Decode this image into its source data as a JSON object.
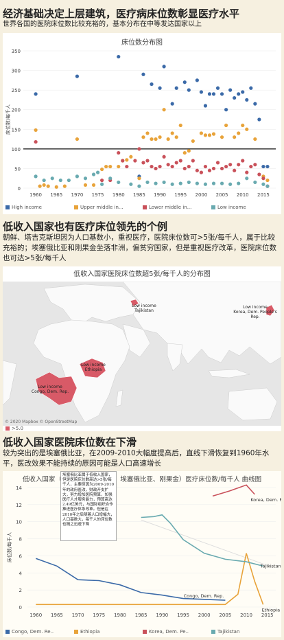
{
  "section1": {
    "title": "经济基础决定上层建筑，医疗病床位数彰显医疗水平",
    "subtitle": "世界各国的医院床位数比较充裕的，基本分布在中等发达国家以上",
    "chart_title": "床位数分布图"
  },
  "section2": {
    "title": "低收入国家也有医疗床位领先的个例",
    "text": "朝鲜、塔吉克斯坦因为人口基数小，重视医疗，医院床位数可>5张/每千人，属于比较充裕的；埃塞俄比亚和刚果金坐落非洲，偏贫穷国家，但是重视医疗改革，医院床位数也可达>5张/每千人",
    "chart_title": "低收入国家医院床位数超5张/每千人的分布图",
    "legend_label": ">5.0",
    "attribution": "© 2020 Mapbox © OpenStreetMap",
    "map_labels": {
      "tajikistan": "Low income\nTajikistan",
      "korea": "Low income\nKorea, Dem. People's Rep.",
      "ethiopia": "Low income\nEthiopia",
      "congo": "Low income\nCongo, Dem. Rep."
    }
  },
  "section3": {
    "title": "低收入国家医院床位数在下滑",
    "text": "较为突出的是埃塞俄比亚，在2009-2010大幅度提高后，直线下滑恢复到1960年水平，医改效果不能持续的原因可能是人口高速增长",
    "chart_title": "低收入国家（朝鲜、塔吉克斯坦、埃塞俄比亚、刚果金）医疗床位数/每千人 曲线图",
    "annotation": "埃塞俄比亚属于低收入国家，但是医院床位数高达>5张/每千人，主要原因为2009-2010年的政府医改，财政开支扩大，努力增加医院预算，加强医疗人才服务能力，预算高达2.49亿美元，与国际组织合作推进医疗体系改革。但是在2010年之后随着人口增幅大，人口基数大，每千人的床位数也随之迅速下降"
  },
  "chart_data": [
    {
      "type": "scatter",
      "title": "床位数分布图",
      "xlabel": "",
      "ylabel": "床位数/每千人",
      "xlim": [
        1957,
        2018
      ],
      "ylim": [
        0,
        350
      ],
      "x_ticks": [
        1960,
        1965,
        1970,
        1975,
        1980,
        1985,
        1990,
        1995,
        2000,
        2005,
        2010,
        2015
      ],
      "y_ticks": [
        0,
        50,
        100,
        150,
        200,
        250,
        300,
        350
      ],
      "reference_line": 100,
      "series": [
        {
          "name": "High income",
          "color": "#3b6aa8",
          "points": [
            [
              1960,
              240
            ],
            [
              1970,
              285
            ],
            [
              1980,
              335
            ],
            [
              1985,
              30
            ],
            [
              1986,
              290
            ],
            [
              1988,
              265
            ],
            [
              1990,
              255
            ],
            [
              1991,
              310
            ],
            [
              1993,
              215
            ],
            [
              1994,
              255
            ],
            [
              1996,
              270
            ],
            [
              1997,
              250
            ],
            [
              1999,
              275
            ],
            [
              2000,
              245
            ],
            [
              2001,
              210
            ],
            [
              2002,
              240
            ],
            [
              2003,
              240
            ],
            [
              2004,
              255
            ],
            [
              2005,
              240
            ],
            [
              2006,
              200
            ],
            [
              2007,
              250
            ],
            [
              2008,
              230
            ],
            [
              2009,
              240
            ],
            [
              2010,
              245
            ],
            [
              2011,
              225
            ],
            [
              2012,
              255
            ],
            [
              2013,
              215
            ],
            [
              2014,
              175
            ],
            [
              2015,
              55
            ],
            [
              2016,
              55
            ]
          ]
        },
        {
          "name": "Upper middle in...",
          "color": "#e8a33a",
          "points": [
            [
              1960,
              148
            ],
            [
              1961,
              5
            ],
            [
              1962,
              8
            ],
            [
              1963,
              5
            ],
            [
              1965,
              3
            ],
            [
              1967,
              5
            ],
            [
              1970,
              125
            ],
            [
              1972,
              8
            ],
            [
              1974,
              8
            ],
            [
              1976,
              48
            ],
            [
              1977,
              55
            ],
            [
              1978,
              55
            ],
            [
              1980,
              55
            ],
            [
              1981,
              70
            ],
            [
              1982,
              72
            ],
            [
              1983,
              80
            ],
            [
              1985,
              25
            ],
            [
              1986,
              130
            ],
            [
              1987,
              140
            ],
            [
              1988,
              125
            ],
            [
              1989,
              125
            ],
            [
              1990,
              130
            ],
            [
              1991,
              200
            ],
            [
              1992,
              125
            ],
            [
              1993,
              140
            ],
            [
              1994,
              130
            ],
            [
              1995,
              160
            ],
            [
              1996,
              90
            ],
            [
              1997,
              95
            ],
            [
              1998,
              120
            ],
            [
              2000,
              140
            ],
            [
              2001,
              135
            ],
            [
              2002,
              135
            ],
            [
              2003,
              138
            ],
            [
              2005,
              130
            ],
            [
              2006,
              160
            ],
            [
              2008,
              130
            ],
            [
              2009,
              140
            ],
            [
              2010,
              160
            ],
            [
              2011,
              150
            ],
            [
              2013,
              125
            ],
            [
              2015,
              30
            ],
            [
              2016,
              20
            ]
          ]
        },
        {
          "name": "Lower middle in...",
          "color": "#c9515a",
          "points": [
            [
              1960,
              118
            ],
            [
              1976,
              20
            ],
            [
              1978,
              20
            ],
            [
              1980,
              90
            ],
            [
              1981,
              70
            ],
            [
              1982,
              55
            ],
            [
              1984,
              70
            ],
            [
              1985,
              100
            ],
            [
              1986,
              65
            ],
            [
              1987,
              70
            ],
            [
              1988,
              55
            ],
            [
              1989,
              50
            ],
            [
              1990,
              55
            ],
            [
              1991,
              80
            ],
            [
              1992,
              60
            ],
            [
              1993,
              55
            ],
            [
              1994,
              65
            ],
            [
              1995,
              70
            ],
            [
              1996,
              50
            ],
            [
              1997,
              55
            ],
            [
              1998,
              70
            ],
            [
              1999,
              45
            ],
            [
              2000,
              40
            ],
            [
              2001,
              55
            ],
            [
              2002,
              45
            ],
            [
              2003,
              50
            ],
            [
              2004,
              65
            ],
            [
              2005,
              50
            ],
            [
              2006,
              55
            ],
            [
              2007,
              60
            ],
            [
              2008,
              45
            ],
            [
              2009,
              60
            ],
            [
              2010,
              70
            ],
            [
              2011,
              40
            ],
            [
              2012,
              55
            ],
            [
              2013,
              60
            ],
            [
              2014,
              35
            ],
            [
              2015,
              25
            ],
            [
              2016,
              5
            ]
          ]
        },
        {
          "name": "Low income",
          "color": "#69aab0",
          "points": [
            [
              1960,
              30
            ],
            [
              1962,
              20
            ],
            [
              1964,
              25
            ],
            [
              1966,
              20
            ],
            [
              1968,
              20
            ],
            [
              1970,
              30
            ],
            [
              1972,
              25
            ],
            [
              1974,
              35
            ],
            [
              1975,
              40
            ],
            [
              1976,
              10
            ],
            [
              1978,
              25
            ],
            [
              1980,
              15
            ],
            [
              1983,
              10
            ],
            [
              1985,
              5
            ],
            [
              1987,
              15
            ],
            [
              1989,
              12
            ],
            [
              1991,
              15
            ],
            [
              1993,
              10
            ],
            [
              1995,
              12
            ],
            [
              1997,
              15
            ],
            [
              1999,
              12
            ],
            [
              2001,
              10
            ],
            [
              2003,
              12
            ],
            [
              2005,
              12
            ],
            [
              2007,
              10
            ],
            [
              2009,
              12
            ],
            [
              2011,
              25
            ],
            [
              2013,
              15
            ],
            [
              2015,
              10
            ],
            [
              2016,
              5
            ]
          ]
        }
      ]
    },
    {
      "type": "map",
      "title": "低收入国家医院床位数超5张/每千人的分布图",
      "legend": [
        ">5.0"
      ],
      "regions": [
        "Tajikistan",
        "Korea, Dem. People's Rep.",
        "Ethiopia",
        "Congo, Dem. Rep."
      ]
    },
    {
      "type": "line",
      "title": "低收入国家（朝鲜、塔吉克斯坦、埃塞俄比亚、刚果金）医疗床位数/每千人 曲线图",
      "ylabel": "床位数/每千人",
      "xlim": [
        1958,
        2017
      ],
      "ylim": [
        0,
        14
      ],
      "x_ticks": [
        1960,
        1965,
        1970,
        1975,
        1980,
        1985,
        1990,
        1995,
        2000,
        2005,
        2010,
        2015
      ],
      "y_ticks": [
        0,
        2,
        4,
        6,
        8,
        10,
        12,
        14
      ],
      "series": [
        {
          "name": "Congo, Dem. Re..",
          "color": "#3b6aa8",
          "end_label": "Congo, Dem. Rep.",
          "points": [
            [
              1960,
              5.7
            ],
            [
              1965,
              4.8
            ],
            [
              1970,
              3.2
            ],
            [
              1975,
              3.1
            ],
            [
              1980,
              2.6
            ],
            [
              1985,
              1.7
            ],
            [
              1990,
              1.4
            ],
            [
              1995,
              1.0
            ],
            [
              2000,
              0.9
            ],
            [
              2005,
              0.8
            ]
          ]
        },
        {
          "name": "Ethiopia",
          "color": "#e8a33a",
          "end_label": "Ethiopia",
          "points": [
            [
              1960,
              0.3
            ],
            [
              1965,
              0.3
            ],
            [
              1970,
              0.3
            ],
            [
              1975,
              0.3
            ],
            [
              1980,
              0.3
            ],
            [
              1985,
              0.3
            ],
            [
              1990,
              0.3
            ],
            [
              1995,
              0.3
            ],
            [
              2000,
              0.3
            ],
            [
              2005,
              0.3
            ],
            [
              2008,
              1.5
            ],
            [
              2010,
              6.3
            ],
            [
              2012,
              3.0
            ],
            [
              2014,
              0.3
            ]
          ]
        },
        {
          "name": "Korea, Dem. Pe..",
          "color": "#c9515a",
          "end_label": "Korea, Dem. People's Rep.",
          "points": [
            [
              2002,
              13.0
            ],
            [
              2006,
              13.6
            ],
            [
              2010,
              14.3
            ],
            [
              2012,
              13.2
            ]
          ]
        },
        {
          "name": "Tajikistan",
          "color": "#69aab0",
          "end_label": "Tajikistan",
          "points": [
            [
              1985,
              10.5
            ],
            [
              1988,
              10.6
            ],
            [
              1990,
              10.8
            ],
            [
              1992,
              9.8
            ],
            [
              1995,
              7.9
            ],
            [
              2000,
              6.3
            ],
            [
              2005,
              5.6
            ],
            [
              2010,
              5.3
            ],
            [
              2014,
              4.8
            ]
          ]
        }
      ]
    }
  ]
}
